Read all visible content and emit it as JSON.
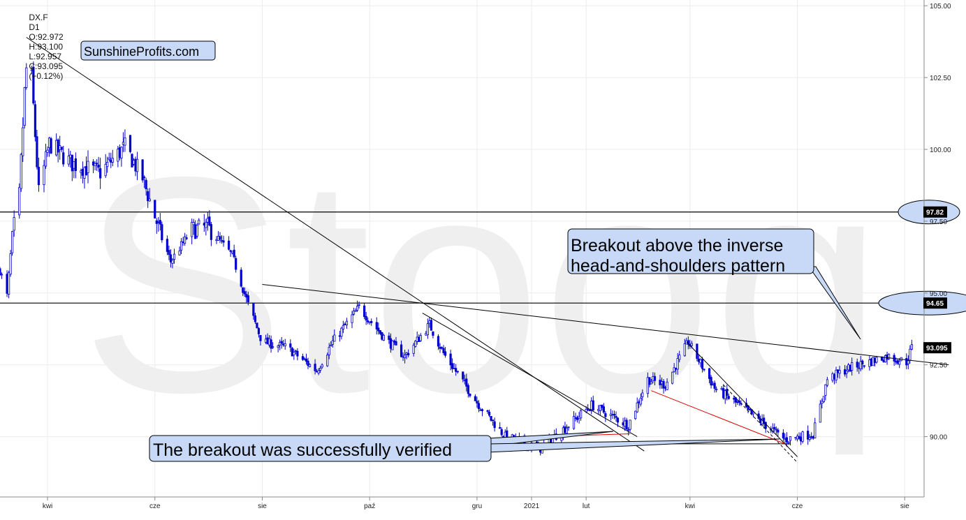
{
  "header": {
    "symbol": "DX.F",
    "interval": "D1",
    "open": "O:92.972",
    "high": "H:93.100",
    "low": "L:92.957",
    "close": "C:93.095",
    "change": "(+0.12%)"
  },
  "watermark": "Stooq",
  "brand_label": "SunshineProfits.com",
  "annotations": {
    "top": "Breakout above the inverse\nhead-and-shoulders pattern",
    "bottom": "The breakout was successfully verified"
  },
  "colors": {
    "up_candle": "#0000cc",
    "down_candle": "#0000cc",
    "annotation_fill": "#c7d9f7",
    "trendline": "#000000",
    "red_line": "#dd0000",
    "price_marker_bg": "#000000"
  },
  "chart_data": {
    "type": "candlestick",
    "title": "",
    "y_axis": {
      "ticks": [
        "105.00",
        "102.50",
        "100.00",
        "97.50",
        "95.00",
        "92.50",
        "90.00"
      ],
      "ylim": [
        87.9,
        105.2
      ],
      "position": "right"
    },
    "x_axis": {
      "ticks": [
        "kwi",
        "cze",
        "sie",
        "paź",
        "gru",
        "2021",
        "lut",
        "kwi",
        "cze",
        "sie"
      ],
      "tick_dates": [
        "2020-04-01",
        "2020-06-01",
        "2020-08-01",
        "2020-10-01",
        "2020-12-01",
        "2021-01-01",
        "2021-02-01",
        "2021-04-01",
        "2021-06-01",
        "2021-08-01"
      ],
      "range": [
        "2020-03-05",
        "2021-08-12"
      ]
    },
    "price_markers": [
      {
        "label": "97.82",
        "value": 97.82
      },
      {
        "label": "94.65",
        "value": 94.65
      },
      {
        "label": "93.095",
        "value": 93.095
      }
    ],
    "horizontal_lines": [
      97.82,
      94.65
    ],
    "anchors": [
      {
        "date": "2020-03-05",
        "price": 95.8
      },
      {
        "date": "2020-03-09",
        "price": 94.9
      },
      {
        "date": "2020-03-12",
        "price": 97.0
      },
      {
        "date": "2020-03-16",
        "price": 98.4
      },
      {
        "date": "2020-03-19",
        "price": 102.0
      },
      {
        "date": "2020-03-20",
        "price": 102.8
      },
      {
        "date": "2020-03-23",
        "price": 102.5
      },
      {
        "date": "2020-03-27",
        "price": 98.5
      },
      {
        "date": "2020-04-02",
        "price": 100.2
      },
      {
        "date": "2020-04-15",
        "price": 99.5
      },
      {
        "date": "2020-05-01",
        "price": 99.2
      },
      {
        "date": "2020-05-15",
        "price": 100.1
      },
      {
        "date": "2020-05-25",
        "price": 99.0
      },
      {
        "date": "2020-06-05",
        "price": 96.9
      },
      {
        "date": "2020-06-10",
        "price": 96.1
      },
      {
        "date": "2020-06-22",
        "price": 97.2
      },
      {
        "date": "2020-07-01",
        "price": 97.3
      },
      {
        "date": "2020-07-15",
        "price": 96.3
      },
      {
        "date": "2020-07-24",
        "price": 94.6
      },
      {
        "date": "2020-08-01",
        "price": 93.3
      },
      {
        "date": "2020-08-15",
        "price": 93.1
      },
      {
        "date": "2020-09-01",
        "price": 92.3
      },
      {
        "date": "2020-09-10",
        "price": 93.3
      },
      {
        "date": "2020-09-25",
        "price": 94.5
      },
      {
        "date": "2020-10-10",
        "price": 93.4
      },
      {
        "date": "2020-10-21",
        "price": 92.8
      },
      {
        "date": "2020-11-04",
        "price": 93.9
      },
      {
        "date": "2020-11-12",
        "price": 92.9
      },
      {
        "date": "2020-12-01",
        "price": 91.2
      },
      {
        "date": "2020-12-17",
        "price": 90.0
      },
      {
        "date": "2021-01-06",
        "price": 89.6
      },
      {
        "date": "2021-01-20",
        "price": 90.3
      },
      {
        "date": "2021-02-04",
        "price": 91.1
      },
      {
        "date": "2021-02-25",
        "price": 90.4
      },
      {
        "date": "2021-03-08",
        "price": 92.0
      },
      {
        "date": "2021-03-18",
        "price": 91.8
      },
      {
        "date": "2021-03-31",
        "price": 93.3
      },
      {
        "date": "2021-04-15",
        "price": 91.7
      },
      {
        "date": "2021-05-01",
        "price": 91.0
      },
      {
        "date": "2021-05-25",
        "price": 89.9
      },
      {
        "date": "2021-06-10",
        "price": 90.1
      },
      {
        "date": "2021-06-18",
        "price": 92.0
      },
      {
        "date": "2021-07-01",
        "price": 92.4
      },
      {
        "date": "2021-07-22",
        "price": 92.8
      },
      {
        "date": "2021-08-02",
        "price": 92.6
      },
      {
        "date": "2021-08-05",
        "price": 93.095
      }
    ],
    "trendlines": [
      {
        "name": "major-downtrend",
        "from": {
          "date": "2020-03-20",
          "price": 103.9
        },
        "to": {
          "date": "2021-03-06",
          "price": 89.5
        }
      },
      {
        "name": "inverse-hs-neckline",
        "from": {
          "date": "2020-08-01",
          "price": 95.3
        },
        "to": {
          "date": "2021-08-26",
          "price": 92.5
        }
      },
      {
        "name": "secondary-downtrend",
        "from": {
          "date": "2020-10-31",
          "price": 94.3
        },
        "to": {
          "date": "2021-03-02",
          "price": 90.0
        }
      },
      {
        "name": "lower-support",
        "from": {
          "date": "2020-12-09",
          "price": 89.75
        },
        "to": {
          "date": "2021-05-28",
          "price": 89.75
        }
      },
      {
        "name": "spring-2021-down",
        "from": {
          "date": "2021-03-30",
          "price": 93.3
        },
        "to": {
          "date": "2021-06-01",
          "price": 89.3
        }
      }
    ],
    "red_lines": [
      {
        "from": {
          "date": "2020-12-17",
          "price": 89.95
        },
        "to": {
          "date": "2021-02-26",
          "price": 90.1
        }
      },
      {
        "from": {
          "date": "2021-03-10",
          "price": 91.6
        },
        "to": {
          "date": "2021-05-25",
          "price": 89.75
        }
      }
    ]
  }
}
